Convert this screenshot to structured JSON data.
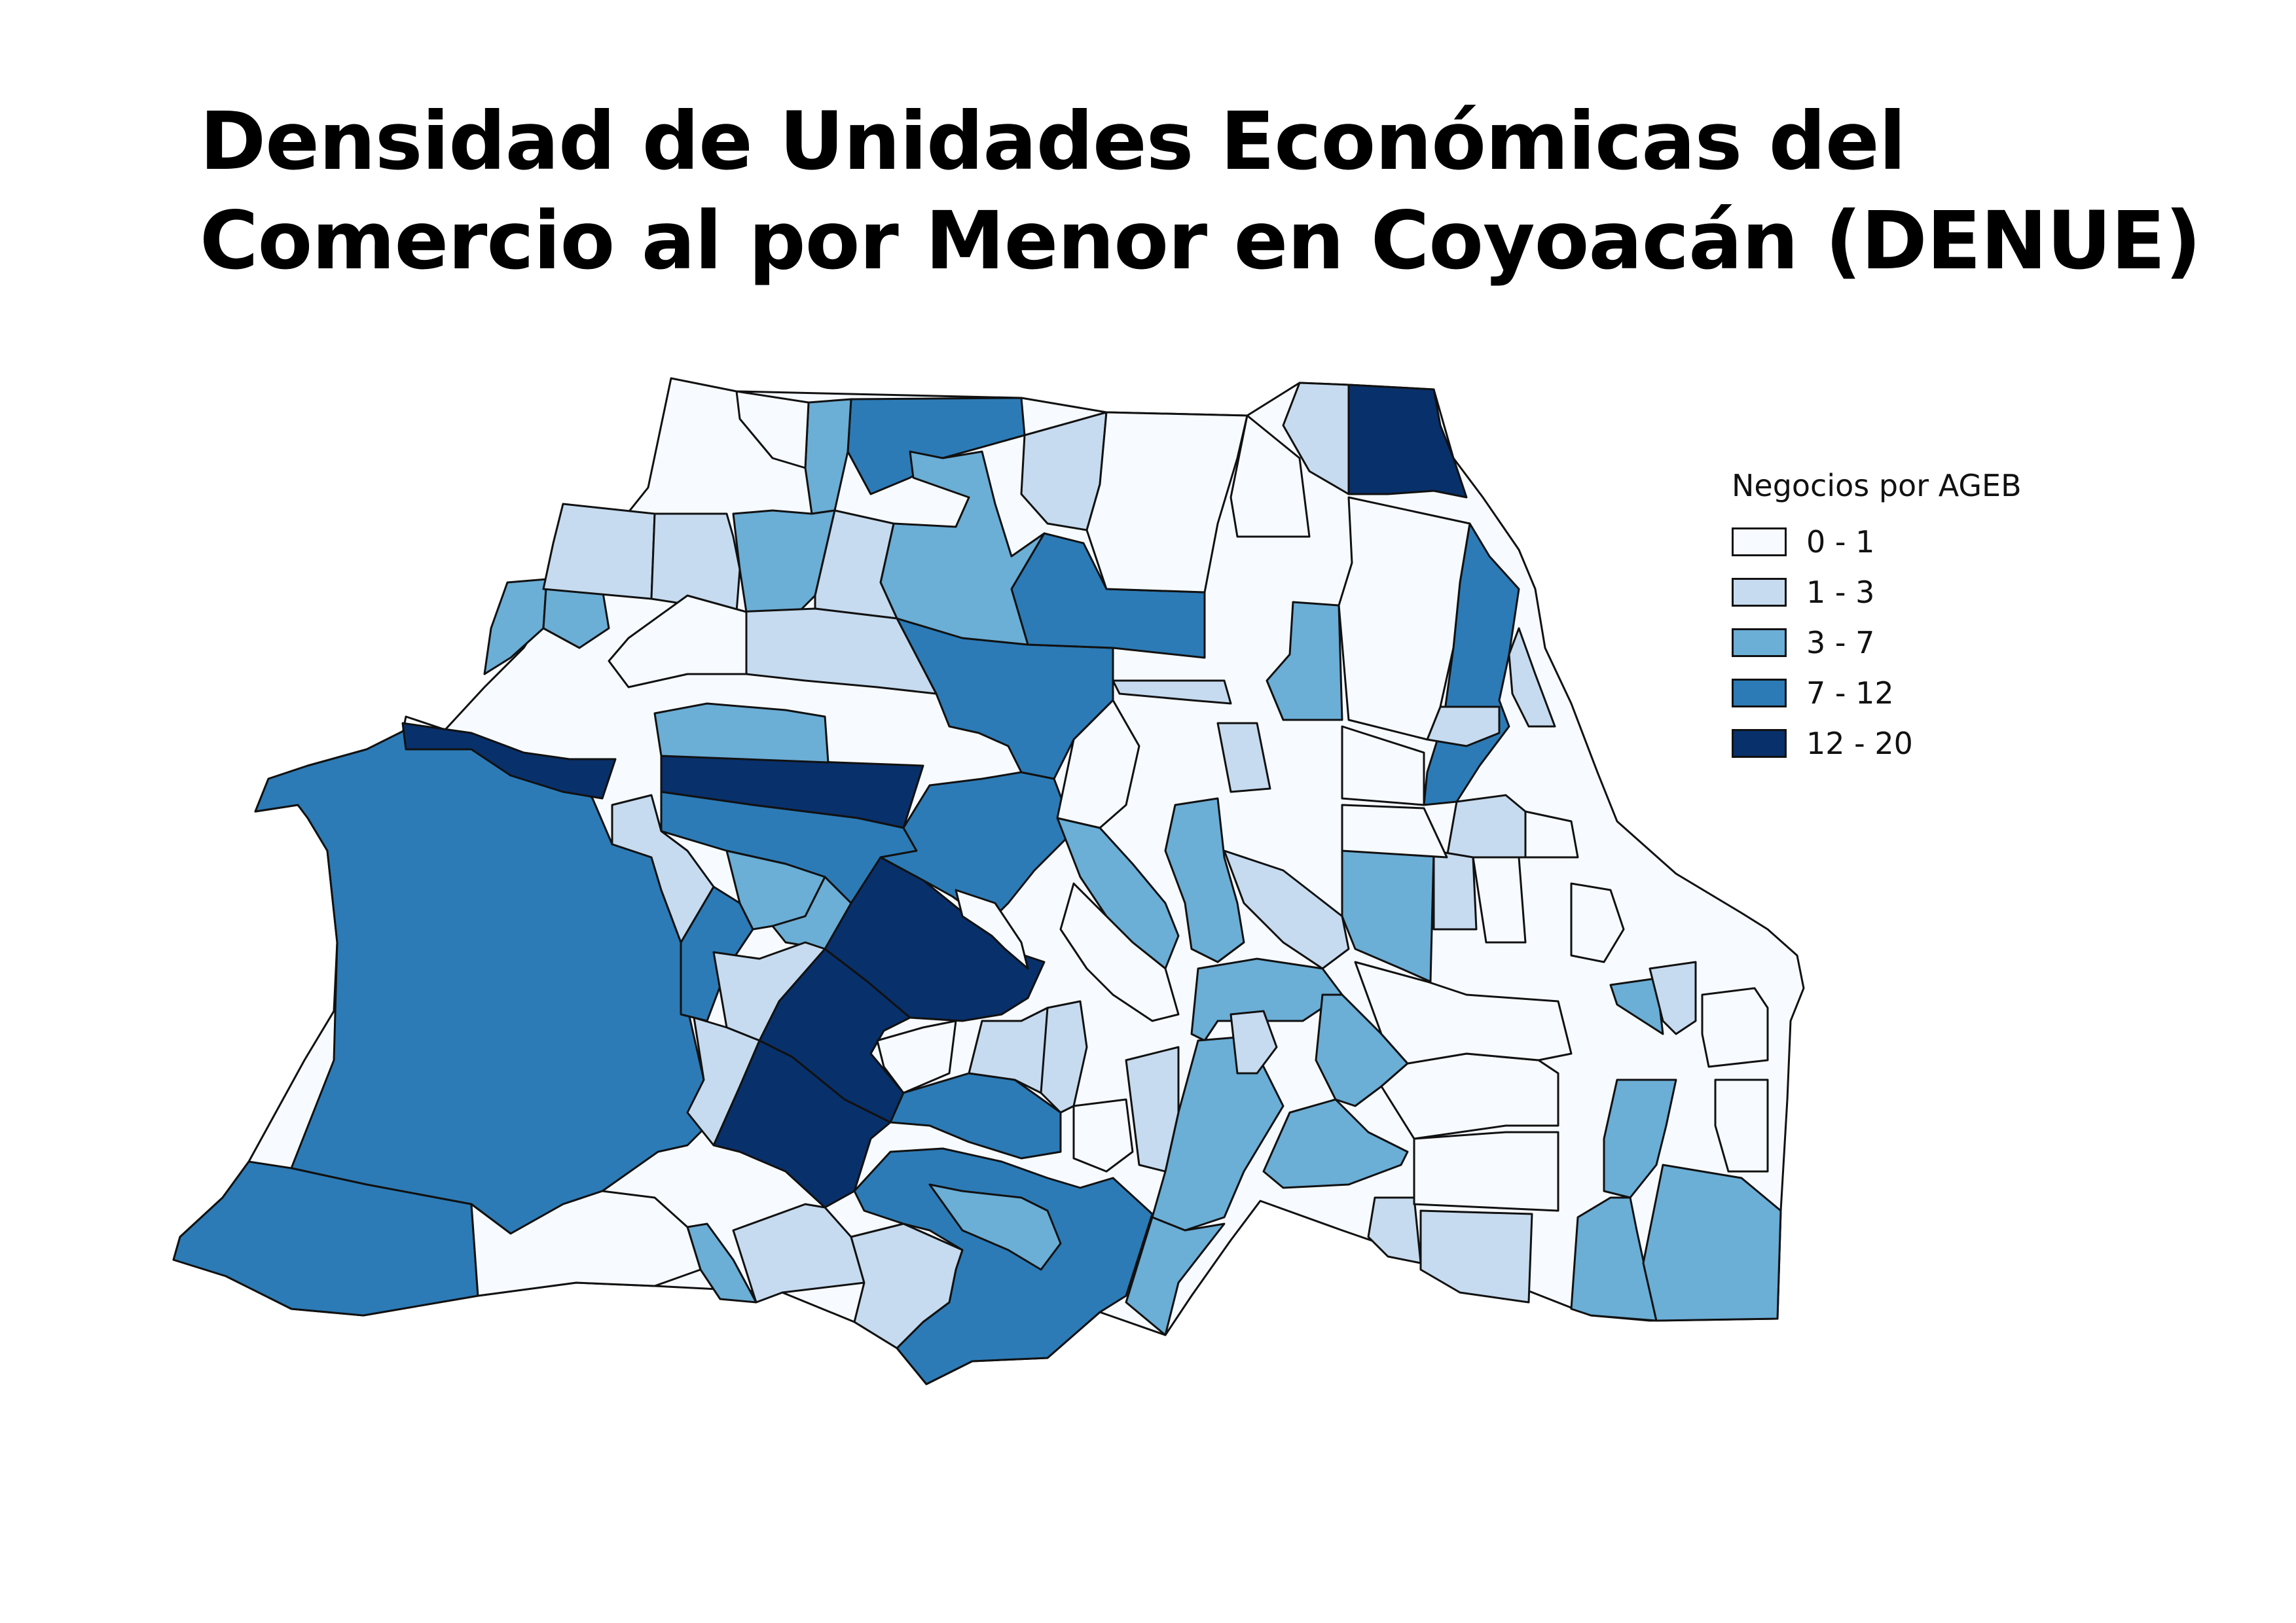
{
  "title": {
    "line1": "Densidad de Unidades Económicas del",
    "line2": "Comercio al por Menor en Coyoacán (DENUE)"
  },
  "legend": {
    "title": "Negocios por AGEB",
    "classes": [
      {
        "label": "0 - 1",
        "color": "#f7fbff"
      },
      {
        "label": "1 - 3",
        "color": "#c6dbef"
      },
      {
        "label": "3 - 7",
        "color": "#6baed6"
      },
      {
        "label": "7 - 12",
        "color": "#2c7bb6"
      },
      {
        "label": "12 - 20",
        "color": "#08306b"
      }
    ]
  }
}
